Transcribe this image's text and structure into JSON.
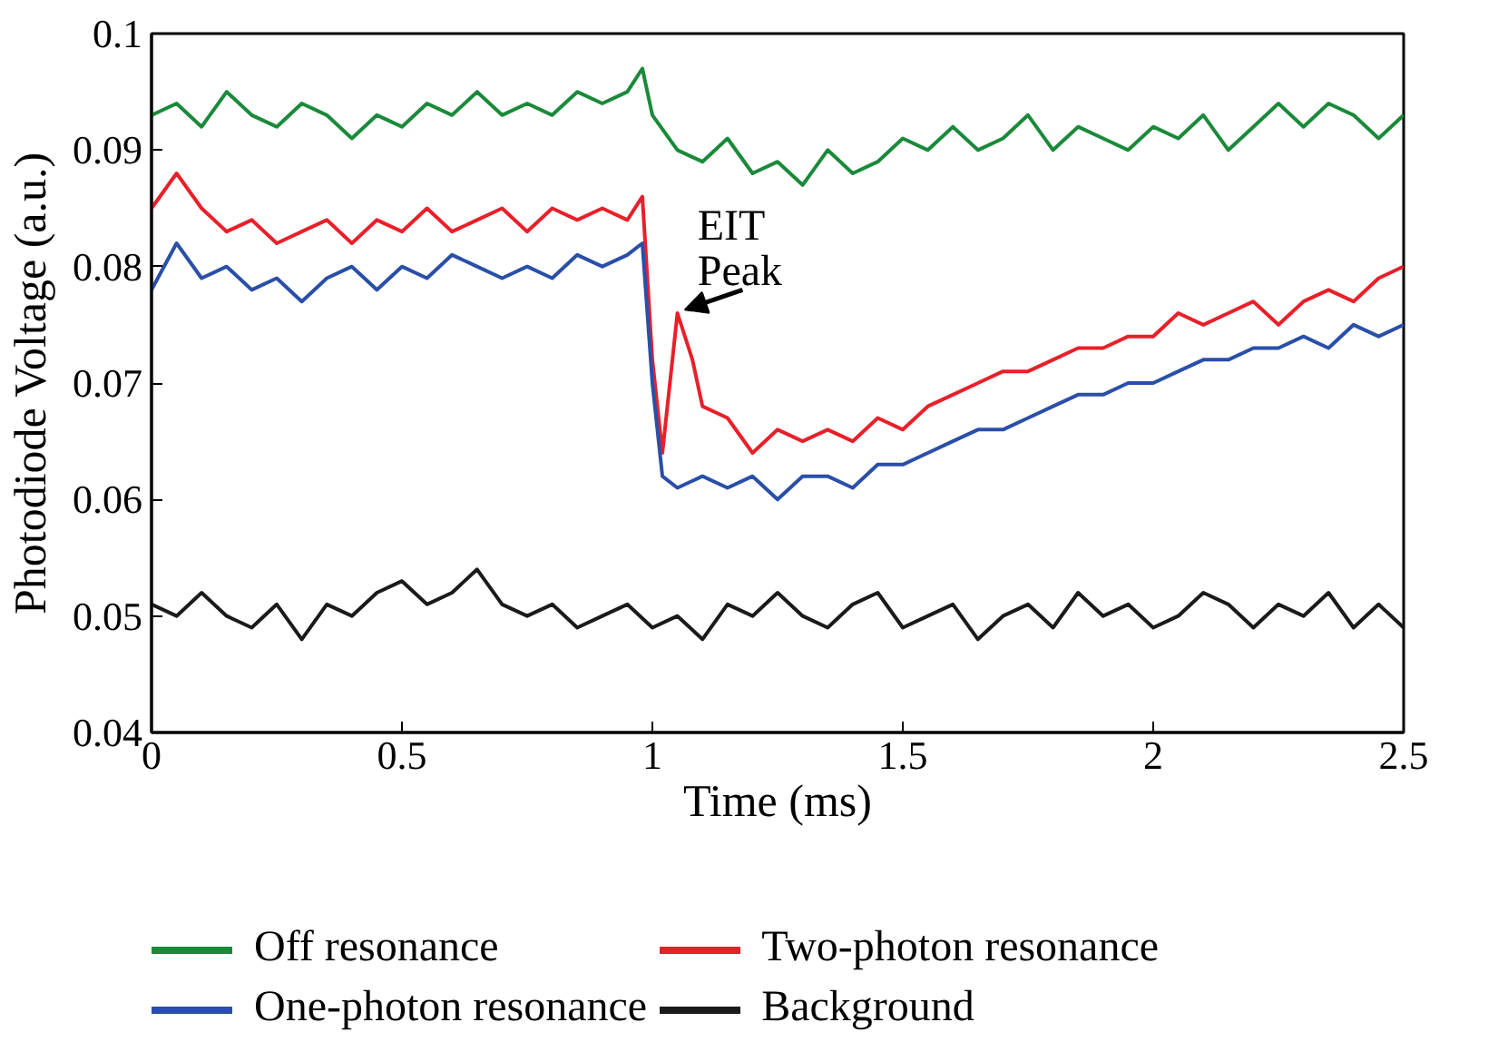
{
  "chart_data": {
    "type": "line",
    "xlabel": "Time (ms)",
    "ylabel": "Photodiode Voltage (a.u.)",
    "xlim": [
      0,
      2.5
    ],
    "ylim": [
      0.04,
      0.1
    ],
    "xticks": [
      0,
      0.5,
      1,
      1.5,
      2,
      2.5
    ],
    "yticks": [
      0.04,
      0.05,
      0.06,
      0.07,
      0.08,
      0.09,
      0.1
    ],
    "grid": false,
    "legend": "bottom",
    "line_style": "solid",
    "marker": "none",
    "annotations": [
      {
        "text": "EIT\nPeak",
        "x": 1.05,
        "y": 0.076
      }
    ],
    "series": [
      {
        "name": "Off resonance",
        "color": "#1a8a3a",
        "x": [
          0,
          0.05,
          0.1,
          0.15,
          0.2,
          0.25,
          0.3,
          0.35,
          0.4,
          0.45,
          0.5,
          0.55,
          0.6,
          0.65,
          0.7,
          0.75,
          0.8,
          0.85,
          0.9,
          0.95,
          0.98,
          1.0,
          1.05,
          1.1,
          1.15,
          1.2,
          1.25,
          1.3,
          1.35,
          1.4,
          1.45,
          1.5,
          1.55,
          1.6,
          1.65,
          1.7,
          1.75,
          1.8,
          1.85,
          1.9,
          1.95,
          2.0,
          2.05,
          2.1,
          2.15,
          2.2,
          2.25,
          2.3,
          2.35,
          2.4,
          2.45,
          2.5
        ],
        "values": [
          0.093,
          0.094,
          0.092,
          0.095,
          0.093,
          0.092,
          0.094,
          0.093,
          0.091,
          0.093,
          0.092,
          0.094,
          0.093,
          0.095,
          0.093,
          0.094,
          0.093,
          0.095,
          0.094,
          0.095,
          0.097,
          0.093,
          0.09,
          0.089,
          0.091,
          0.088,
          0.089,
          0.087,
          0.09,
          0.088,
          0.089,
          0.091,
          0.09,
          0.092,
          0.09,
          0.091,
          0.093,
          0.09,
          0.092,
          0.091,
          0.09,
          0.092,
          0.091,
          0.093,
          0.09,
          0.092,
          0.094,
          0.092,
          0.094,
          0.093,
          0.091,
          0.093
        ]
      },
      {
        "name": "Two-photon resonance",
        "color": "#e8202a",
        "x": [
          0,
          0.05,
          0.1,
          0.15,
          0.2,
          0.25,
          0.3,
          0.35,
          0.4,
          0.45,
          0.5,
          0.55,
          0.6,
          0.65,
          0.7,
          0.75,
          0.8,
          0.85,
          0.9,
          0.95,
          0.98,
          1.0,
          1.02,
          1.05,
          1.08,
          1.1,
          1.15,
          1.2,
          1.25,
          1.3,
          1.35,
          1.4,
          1.45,
          1.5,
          1.55,
          1.6,
          1.65,
          1.7,
          1.75,
          1.8,
          1.85,
          1.9,
          1.95,
          2.0,
          2.05,
          2.1,
          2.15,
          2.2,
          2.25,
          2.3,
          2.35,
          2.4,
          2.45,
          2.5
        ],
        "values": [
          0.085,
          0.088,
          0.085,
          0.083,
          0.084,
          0.082,
          0.083,
          0.084,
          0.082,
          0.084,
          0.083,
          0.085,
          0.083,
          0.084,
          0.085,
          0.083,
          0.085,
          0.084,
          0.085,
          0.084,
          0.086,
          0.072,
          0.064,
          0.076,
          0.072,
          0.068,
          0.067,
          0.064,
          0.066,
          0.065,
          0.066,
          0.065,
          0.067,
          0.066,
          0.068,
          0.069,
          0.07,
          0.071,
          0.071,
          0.072,
          0.073,
          0.073,
          0.074,
          0.074,
          0.076,
          0.075,
          0.076,
          0.077,
          0.075,
          0.077,
          0.078,
          0.077,
          0.079,
          0.08
        ]
      },
      {
        "name": "One-photon resonance",
        "color": "#2a4fa8",
        "x": [
          0,
          0.05,
          0.1,
          0.15,
          0.2,
          0.25,
          0.3,
          0.35,
          0.4,
          0.45,
          0.5,
          0.55,
          0.6,
          0.65,
          0.7,
          0.75,
          0.8,
          0.85,
          0.9,
          0.95,
          0.98,
          1.0,
          1.02,
          1.05,
          1.1,
          1.15,
          1.2,
          1.25,
          1.3,
          1.35,
          1.4,
          1.45,
          1.5,
          1.55,
          1.6,
          1.65,
          1.7,
          1.75,
          1.8,
          1.85,
          1.9,
          1.95,
          2.0,
          2.05,
          2.1,
          2.15,
          2.2,
          2.25,
          2.3,
          2.35,
          2.4,
          2.45,
          2.5
        ],
        "values": [
          0.078,
          0.082,
          0.079,
          0.08,
          0.078,
          0.079,
          0.077,
          0.079,
          0.08,
          0.078,
          0.08,
          0.079,
          0.081,
          0.08,
          0.079,
          0.08,
          0.079,
          0.081,
          0.08,
          0.081,
          0.082,
          0.07,
          0.062,
          0.061,
          0.062,
          0.061,
          0.062,
          0.06,
          0.062,
          0.062,
          0.061,
          0.063,
          0.063,
          0.064,
          0.065,
          0.066,
          0.066,
          0.067,
          0.068,
          0.069,
          0.069,
          0.07,
          0.07,
          0.071,
          0.072,
          0.072,
          0.073,
          0.073,
          0.074,
          0.073,
          0.075,
          0.074,
          0.075
        ]
      },
      {
        "name": "Background",
        "color": "#1a1a1a",
        "x": [
          0,
          0.05,
          0.1,
          0.15,
          0.2,
          0.25,
          0.3,
          0.35,
          0.4,
          0.45,
          0.5,
          0.55,
          0.6,
          0.65,
          0.7,
          0.75,
          0.8,
          0.85,
          0.9,
          0.95,
          1.0,
          1.05,
          1.1,
          1.15,
          1.2,
          1.25,
          1.3,
          1.35,
          1.4,
          1.45,
          1.5,
          1.55,
          1.6,
          1.65,
          1.7,
          1.75,
          1.8,
          1.85,
          1.9,
          1.95,
          2.0,
          2.05,
          2.1,
          2.15,
          2.2,
          2.25,
          2.3,
          2.35,
          2.4,
          2.45,
          2.5
        ],
        "values": [
          0.051,
          0.05,
          0.052,
          0.05,
          0.049,
          0.051,
          0.048,
          0.051,
          0.05,
          0.052,
          0.053,
          0.051,
          0.052,
          0.054,
          0.051,
          0.05,
          0.051,
          0.049,
          0.05,
          0.051,
          0.049,
          0.05,
          0.048,
          0.051,
          0.05,
          0.052,
          0.05,
          0.049,
          0.051,
          0.052,
          0.049,
          0.05,
          0.051,
          0.048,
          0.05,
          0.051,
          0.049,
          0.052,
          0.05,
          0.051,
          0.049,
          0.05,
          0.052,
          0.051,
          0.049,
          0.051,
          0.05,
          0.052,
          0.049,
          0.051,
          0.049
        ]
      }
    ]
  }
}
